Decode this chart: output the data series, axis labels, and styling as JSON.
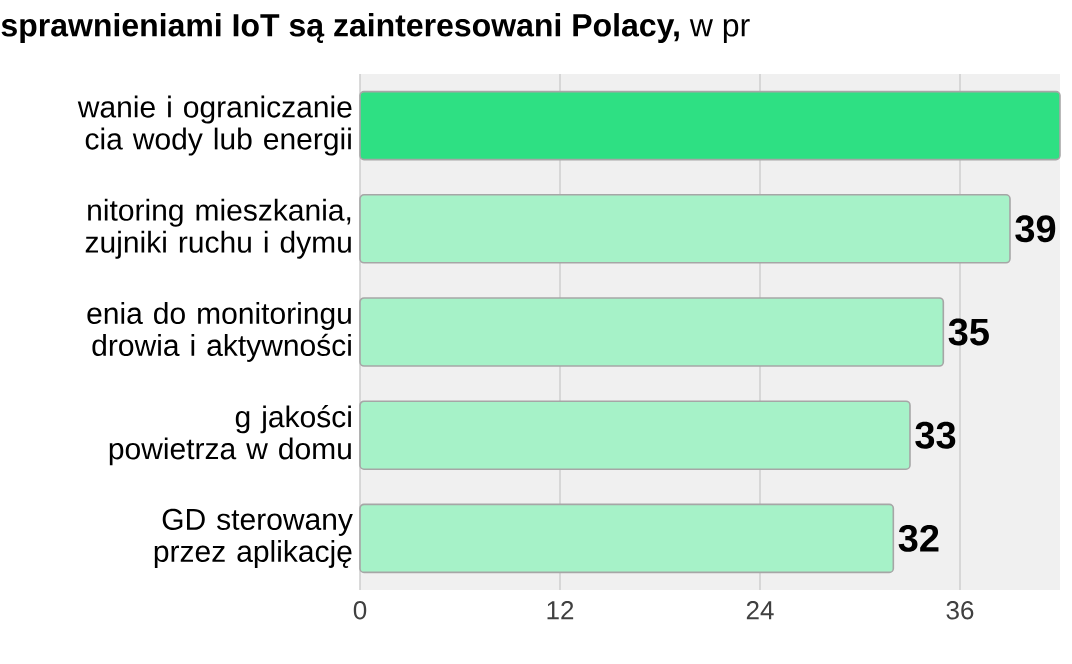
{
  "chart_data": {
    "type": "bar",
    "orientation": "horizontal",
    "title": "**sprawnieniami IoT są zainteresowani Polacy,** w pr",
    "categories": [
      "wanie i ograniczanie cia wody lub energii",
      "nitoring mieszkania, zujniki ruchu i dymu",
      "enia do monitoringu drowia i aktywności",
      "g jakości powietrza w domu",
      "GD sterowany przez aplikację"
    ],
    "values": [
      42,
      39,
      35,
      33,
      32
    ],
    "colors": [
      "#2ee083",
      "#a6f2c8",
      "#a6f2c8",
      "#a6f2c8",
      "#a6f2c8"
    ],
    "value_labels": [
      null,
      "39",
      "35",
      "33",
      "32"
    ],
    "xlim": [
      0,
      42
    ],
    "xticks": [
      0,
      12,
      24,
      36
    ],
    "grid": "x"
  }
}
